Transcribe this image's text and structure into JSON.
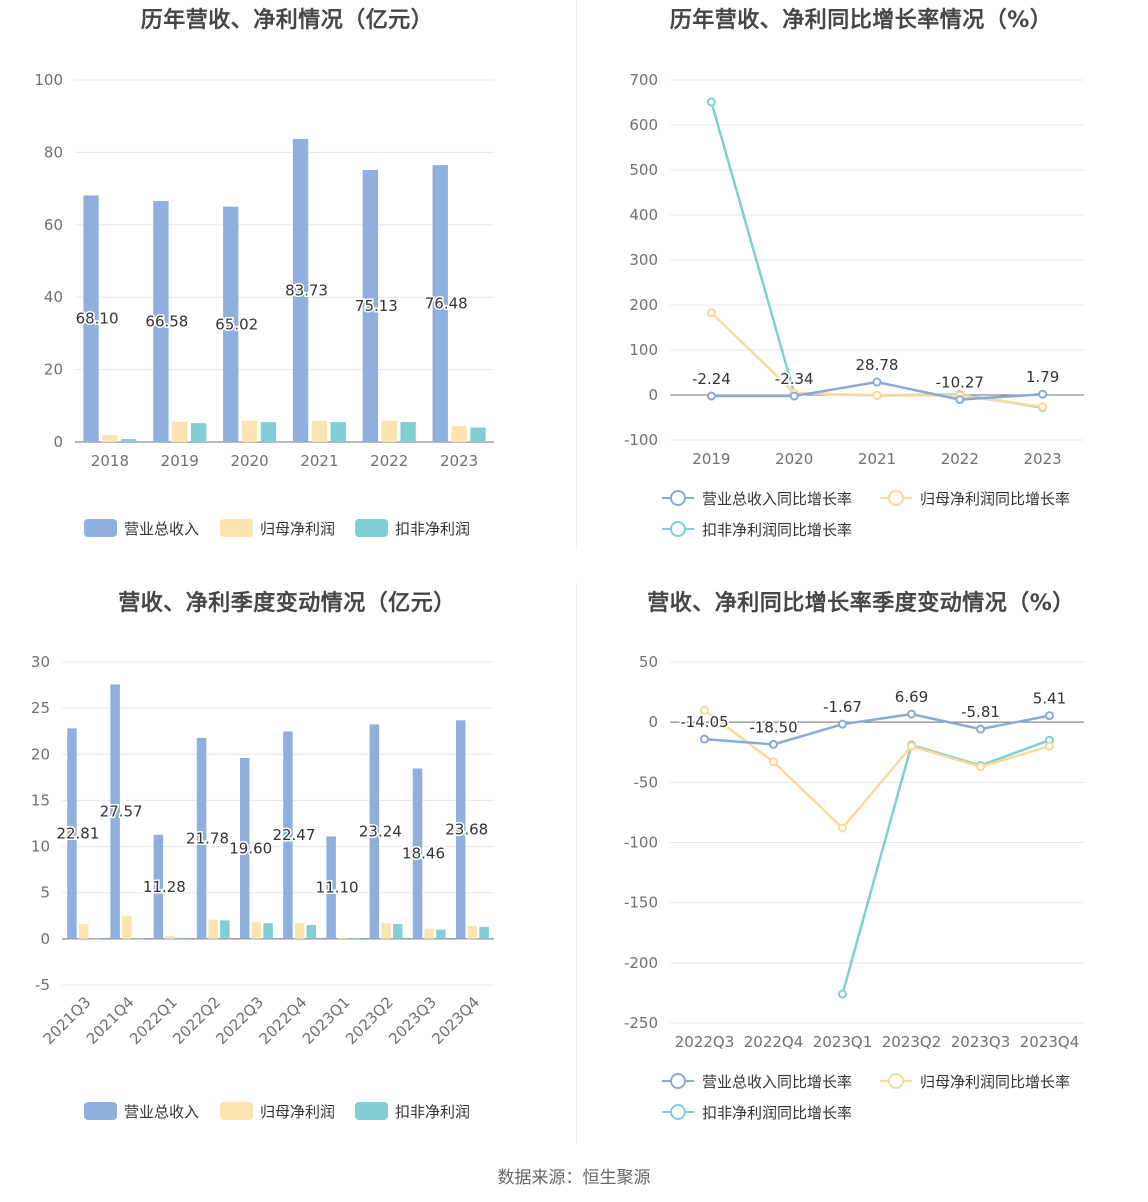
{
  "source": "数据来源：恒生聚源",
  "chart_data": [
    {
      "id": "annual_amount",
      "type": "bar",
      "title": "历年营收、净利情况（亿元）",
      "categories": [
        "2018",
        "2019",
        "2020",
        "2021",
        "2022",
        "2023"
      ],
      "ylim": [
        0,
        100
      ],
      "yticks": [
        0,
        20,
        40,
        60,
        80,
        100
      ],
      "grid": true,
      "legend_position": "bottom",
      "series": [
        {
          "name": "营业总收入",
          "color": "#8fb0dc",
          "values": [
            68.1,
            66.58,
            65.02,
            83.73,
            75.13,
            76.48
          ],
          "labels": [
            "68.10",
            "66.58",
            "65.02",
            "83.73",
            "75.13",
            "76.48"
          ]
        },
        {
          "name": "归母净利润",
          "color": "#fde3b0",
          "values": [
            1.9,
            5.6,
            5.9,
            5.8,
            5.9,
            4.4
          ]
        },
        {
          "name": "扣非净利润",
          "color": "#7fcfd4",
          "values": [
            0.8,
            5.2,
            5.5,
            5.5,
            5.5,
            4.0
          ]
        }
      ]
    },
    {
      "id": "annual_growth",
      "type": "line",
      "title": "历年营收、净利同比增长率情况（%）",
      "categories": [
        "2019",
        "2020",
        "2021",
        "2022",
        "2023"
      ],
      "ylim": [
        -100,
        700
      ],
      "yticks": [
        -100,
        0,
        100,
        200,
        300,
        400,
        500,
        600,
        700
      ],
      "grid": true,
      "legend_position": "bottom",
      "series": [
        {
          "name": "营业总收入同比增长率",
          "color": "#8aa9d6",
          "values": [
            -2.24,
            -2.34,
            28.78,
            -10.27,
            1.79
          ],
          "labels": [
            "-2.24",
            "-2.34",
            "28.78",
            "-10.27",
            "1.79"
          ]
        },
        {
          "name": "归母净利润同比增长率",
          "color": "#fbd99b",
          "values": [
            183,
            5,
            -1,
            -1,
            -26
          ]
        },
        {
          "name": "扣非净利润同比增长率",
          "color": "#7ed0d3",
          "values": [
            651,
            4,
            -1,
            1,
            -28
          ]
        }
      ]
    },
    {
      "id": "quarter_amount",
      "type": "bar",
      "title": "营收、净利季度变动情况（亿元）",
      "categories": [
        "2021Q3",
        "2021Q4",
        "2022Q1",
        "2022Q2",
        "2022Q3",
        "2022Q4",
        "2023Q1",
        "2023Q2",
        "2023Q3",
        "2023Q4"
      ],
      "ylim": [
        -5,
        30
      ],
      "yticks": [
        -5,
        0,
        5,
        10,
        15,
        20,
        25,
        30
      ],
      "grid": true,
      "legend_position": "bottom",
      "series": [
        {
          "name": "营业总收入",
          "color": "#8fb0dc",
          "values": [
            22.81,
            27.57,
            11.28,
            21.78,
            19.6,
            22.47,
            11.1,
            23.24,
            18.46,
            23.68
          ],
          "labels": [
            "22.81",
            "27.57",
            "11.28",
            "21.78",
            "19.60",
            "22.47",
            "11.10",
            "23.24",
            "18.46",
            "23.68"
          ]
        },
        {
          "name": "归母净利润",
          "color": "#fde3b0",
          "values": [
            1.6,
            2.5,
            0.3,
            2.1,
            1.8,
            1.7,
            0.1,
            1.7,
            1.1,
            1.4
          ]
        },
        {
          "name": "扣非净利润",
          "color": "#7fcfd4",
          "values": [
            0.0,
            0.0,
            0.1,
            2.0,
            1.7,
            1.5,
            -0.1,
            1.6,
            1.0,
            1.3
          ]
        }
      ]
    },
    {
      "id": "quarter_growth",
      "type": "line",
      "title": "营收、净利同比增长率季度变动情况（%）",
      "categories": [
        "2022Q3",
        "2022Q4",
        "2023Q1",
        "2023Q2",
        "2023Q3",
        "2023Q4"
      ],
      "ylim": [
        -250,
        50
      ],
      "yticks": [
        -250,
        -200,
        -150,
        -100,
        -50,
        0,
        50
      ],
      "grid": true,
      "legend_position": "bottom",
      "series": [
        {
          "name": "营业总收入同比增长率",
          "color": "#8aa9d6",
          "values": [
            -14.05,
            -18.5,
            -1.67,
            6.69,
            -5.81,
            5.41
          ],
          "labels": [
            "-14.05",
            "-18.50",
            "-1.67",
            "6.69",
            "-5.81",
            "5.41"
          ]
        },
        {
          "name": "归母净利润同比增长率",
          "color": "#fbd99b",
          "values": [
            10,
            -33,
            -88,
            -20,
            -37,
            -20
          ]
        },
        {
          "name": "扣非净利润同比增长率",
          "color": "#7ed0d3",
          "values": [
            null,
            null,
            -226,
            -19,
            -36,
            -15
          ]
        }
      ]
    }
  ]
}
